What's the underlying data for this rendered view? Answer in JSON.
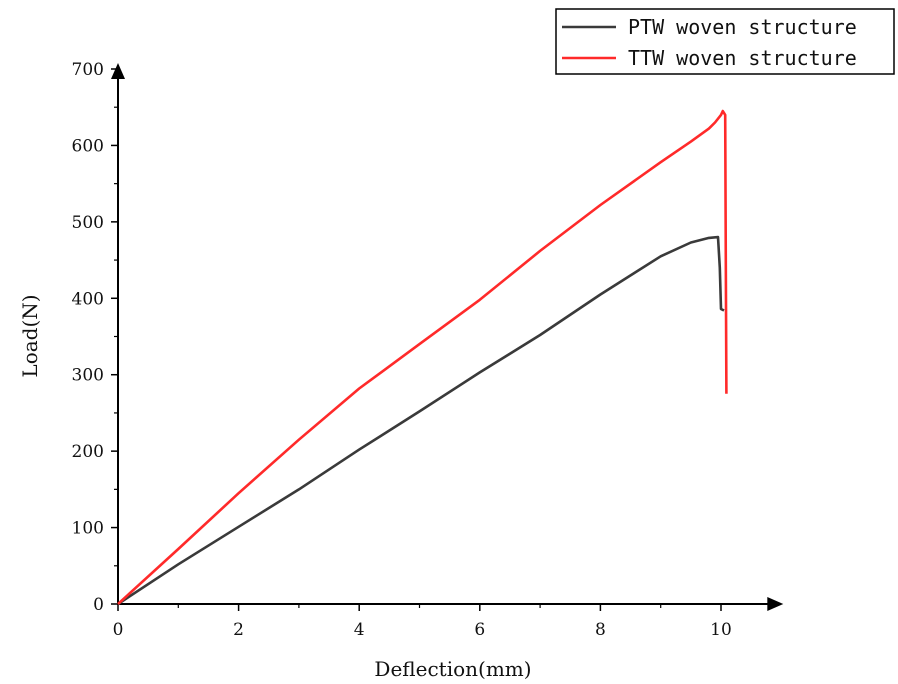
{
  "chart_data": {
    "type": "line",
    "title": "",
    "xlabel": "Deflection(mm)",
    "ylabel": "Load(N)",
    "xlim": [
      0,
      11
    ],
    "ylim": [
      0,
      700
    ],
    "x_ticks": [
      0,
      2,
      4,
      6,
      8,
      10
    ],
    "y_ticks": [
      0,
      100,
      200,
      300,
      400,
      500,
      600,
      700
    ],
    "grid": false,
    "legend_position": "top-right",
    "series": [
      {
        "name": "PTW woven structure",
        "color": "#3a3a3a",
        "points": [
          [
            0,
            0
          ],
          [
            1,
            52
          ],
          [
            2,
            101
          ],
          [
            3,
            150
          ],
          [
            4,
            202
          ],
          [
            5,
            252
          ],
          [
            6,
            303
          ],
          [
            7,
            352
          ],
          [
            8,
            405
          ],
          [
            9,
            455
          ],
          [
            9.5,
            473
          ],
          [
            9.8,
            479
          ],
          [
            9.95,
            480
          ],
          [
            9.98,
            440
          ],
          [
            10.0,
            386
          ],
          [
            10.05,
            384
          ]
        ]
      },
      {
        "name": "TTW woven structure",
        "color": "#ff2a2a",
        "points": [
          [
            0,
            0
          ],
          [
            1,
            72
          ],
          [
            2,
            145
          ],
          [
            3,
            215
          ],
          [
            4,
            282
          ],
          [
            5,
            340
          ],
          [
            6,
            398
          ],
          [
            7,
            462
          ],
          [
            8,
            522
          ],
          [
            9,
            578
          ],
          [
            9.5,
            605
          ],
          [
            9.8,
            622
          ],
          [
            9.9,
            630
          ],
          [
            10.0,
            640
          ],
          [
            10.03,
            645
          ],
          [
            10.07,
            640
          ],
          [
            10.08,
            450
          ],
          [
            10.09,
            275
          ]
        ]
      }
    ]
  }
}
